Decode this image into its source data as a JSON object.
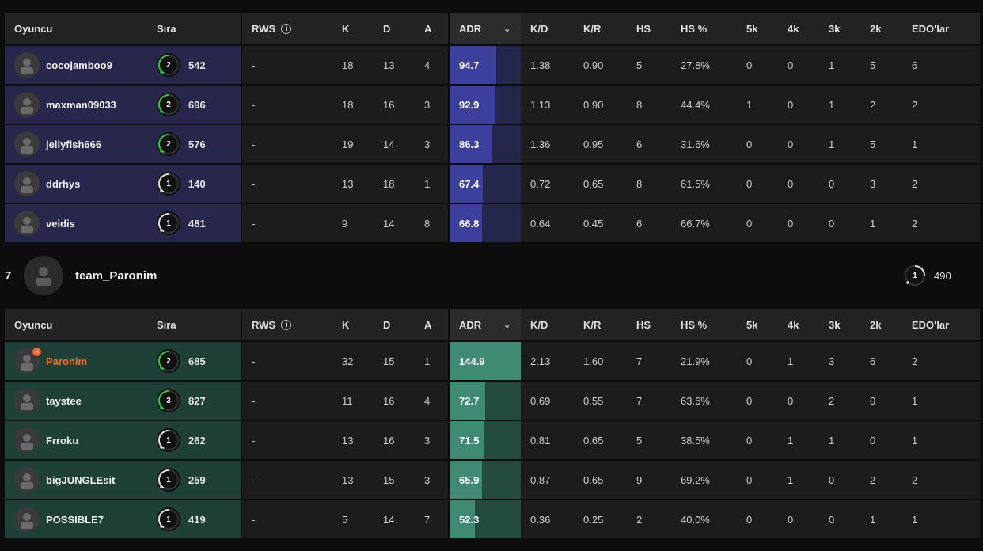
{
  "columns": {
    "player": "Oyuncu",
    "rank": "Sıra",
    "rws": "RWS",
    "k": "K",
    "d": "D",
    "a": "A",
    "adr": "ADR",
    "kd": "K/D",
    "kr": "K/R",
    "hs": "HS",
    "hsp": "HS %",
    "k5": "5k",
    "k4": "4k",
    "k3": "3k",
    "k2": "2k",
    "edo": "EDO'lar"
  },
  "icons": {
    "info": "info-icon",
    "sort": "chevron-down-icon",
    "avatar_placeholder": "user-silhouette-icon",
    "party_leader": "party-leader-icon"
  },
  "colors": {
    "team_a_row": "#26274a",
    "team_a_adr": "#3c3f9c",
    "team_b_row": "#1f4036",
    "team_b_adr": "#3f8a73",
    "leader_name": "#ff6a1a",
    "level_1_ring": "#dddddd",
    "level_2_ring": "#2ecc40",
    "level_3_ring": "#2ecc40"
  },
  "team_a": {
    "players": [
      {
        "name": "cocojamboo9",
        "level": "2",
        "elo": "542",
        "rws": "-",
        "k": "18",
        "d": "13",
        "a": "4",
        "adr": "94.7",
        "kd": "1.38",
        "kr": "0.90",
        "hs": "5",
        "hsp": "27.8%",
        "k5": "0",
        "k4": "0",
        "k3": "1",
        "k2": "5",
        "edo": "6"
      },
      {
        "name": "maxman09033",
        "level": "2",
        "elo": "696",
        "rws": "-",
        "k": "18",
        "d": "16",
        "a": "3",
        "adr": "92.9",
        "kd": "1.13",
        "kr": "0.90",
        "hs": "8",
        "hsp": "44.4%",
        "k5": "1",
        "k4": "0",
        "k3": "1",
        "k2": "2",
        "edo": "2"
      },
      {
        "name": "jellyfish666",
        "level": "2",
        "elo": "576",
        "rws": "-",
        "k": "19",
        "d": "14",
        "a": "3",
        "adr": "86.3",
        "kd": "1.36",
        "kr": "0.95",
        "hs": "6",
        "hsp": "31.6%",
        "k5": "0",
        "k4": "0",
        "k3": "1",
        "k2": "5",
        "edo": "1"
      },
      {
        "name": "ddrhys",
        "level": "1",
        "elo": "140",
        "rws": "-",
        "k": "13",
        "d": "18",
        "a": "1",
        "adr": "67.4",
        "kd": "0.72",
        "kr": "0.65",
        "hs": "8",
        "hsp": "61.5%",
        "k5": "0",
        "k4": "0",
        "k3": "0",
        "k2": "3",
        "edo": "2"
      },
      {
        "name": "veidis",
        "level": "1",
        "elo": "481",
        "rws": "-",
        "k": "9",
        "d": "14",
        "a": "8",
        "adr": "66.8",
        "kd": "0.64",
        "kr": "0.45",
        "hs": "6",
        "hsp": "66.7%",
        "k5": "0",
        "k4": "0",
        "k3": "0",
        "k2": "1",
        "edo": "2"
      }
    ]
  },
  "team_b": {
    "position": "7",
    "name": "team_Paronim",
    "level": "1",
    "elo": "490",
    "players": [
      {
        "name": "Paronim",
        "level": "2",
        "elo": "685",
        "rws": "-",
        "k": "32",
        "d": "15",
        "a": "1",
        "adr": "144.9",
        "kd": "2.13",
        "kr": "1.60",
        "hs": "7",
        "hsp": "21.9%",
        "k5": "0",
        "k4": "1",
        "k3": "3",
        "k2": "6",
        "edo": "2"
      },
      {
        "name": "taystee",
        "level": "3",
        "elo": "827",
        "rws": "-",
        "k": "11",
        "d": "16",
        "a": "4",
        "adr": "72.7",
        "kd": "0.69",
        "kr": "0.55",
        "hs": "7",
        "hsp": "63.6%",
        "k5": "0",
        "k4": "0",
        "k3": "2",
        "k2": "0",
        "edo": "1"
      },
      {
        "name": "Frroku",
        "level": "1",
        "elo": "262",
        "rws": "-",
        "k": "13",
        "d": "16",
        "a": "3",
        "adr": "71.5",
        "kd": "0.81",
        "kr": "0.65",
        "hs": "5",
        "hsp": "38.5%",
        "k5": "0",
        "k4": "1",
        "k3": "1",
        "k2": "0",
        "edo": "1"
      },
      {
        "name": "bigJUNGLEsit",
        "level": "1",
        "elo": "259",
        "rws": "-",
        "k": "13",
        "d": "15",
        "a": "3",
        "adr": "65.9",
        "kd": "0.87",
        "kr": "0.65",
        "hs": "9",
        "hsp": "69.2%",
        "k5": "0",
        "k4": "1",
        "k3": "0",
        "k2": "2",
        "edo": "2"
      },
      {
        "name": "POSSIBLE7",
        "level": "1",
        "elo": "419",
        "rws": "-",
        "k": "5",
        "d": "14",
        "a": "7",
        "adr": "52.3",
        "kd": "0.36",
        "kr": "0.25",
        "hs": "2",
        "hsp": "40.0%",
        "k5": "0",
        "k4": "0",
        "k3": "0",
        "k2": "1",
        "edo": "1"
      }
    ]
  }
}
